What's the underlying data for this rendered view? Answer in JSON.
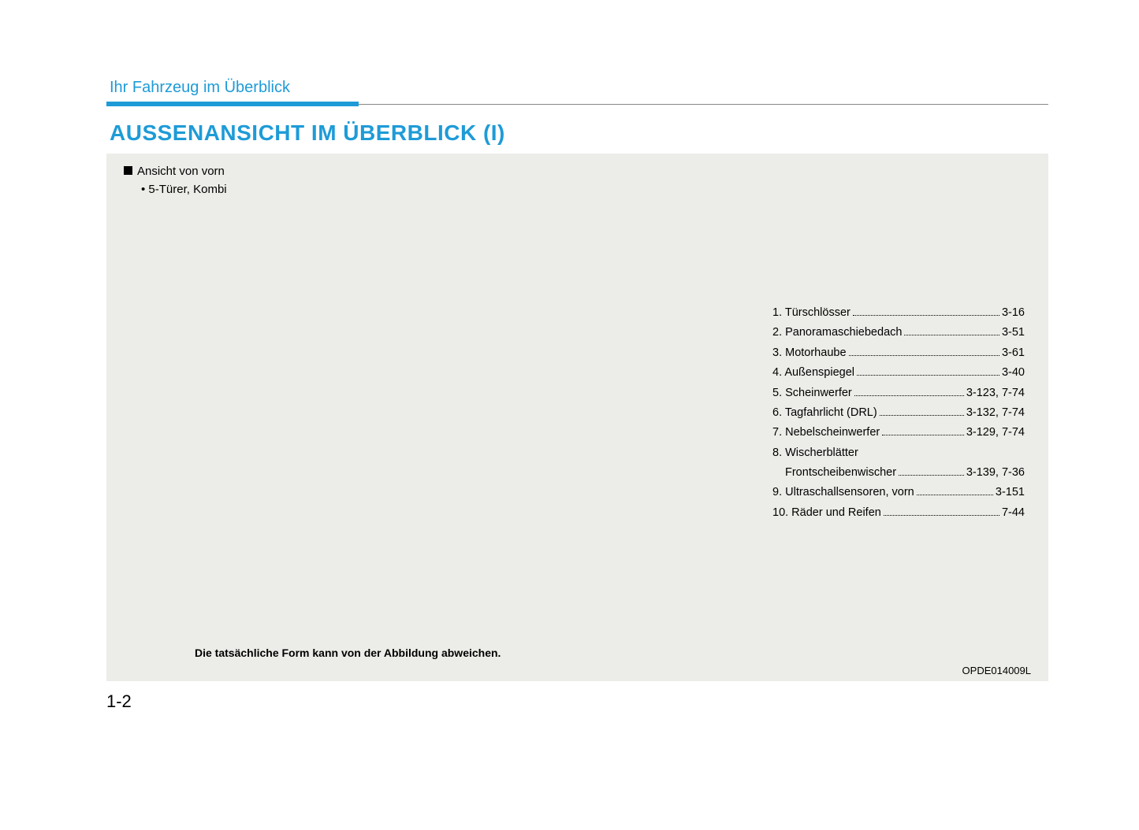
{
  "header": {
    "section_label": "Ihr Fahrzeug im Überblick",
    "title": "AUSSENANSICHT IM ÜBERBLICK (I)"
  },
  "view": {
    "label": "Ansicht von vorn",
    "sub": "• 5-Türer, Kombi"
  },
  "toc": [
    {
      "label": "1. Türschlösser",
      "page": "3-16"
    },
    {
      "label": "2. Panoramaschiebedach",
      "page": "3-51"
    },
    {
      "label": "3. Motorhaube",
      "page": "3-61"
    },
    {
      "label": "4. Außenspiegel",
      "page": "3-40"
    },
    {
      "label": "5. Scheinwerfer",
      "page": "3-123, 7-74"
    },
    {
      "label": "6. Tagfahrlicht (DRL)",
      "page": "3-132, 7-74"
    },
    {
      "label": "7. Nebelscheinwerfer",
      "page": "3-129, 7-74"
    },
    {
      "label": "8. Wischerblätter",
      "page": ""
    },
    {
      "label": "Frontscheibenwischer",
      "page": "3-139, 7-36",
      "sub": true
    },
    {
      "label": "9. Ultraschallsensoren, vorn",
      "page": "3-151"
    },
    {
      "label": "10. Räder und Reifen",
      "page": "7-44"
    }
  ],
  "caption": "Die tatsächliche Form kann von der Abbildung abweichen.",
  "image_code": "OPDE014009L",
  "page_number": "1-2",
  "colors": {
    "accent": "#1e9bd7",
    "box_bg": "#ecede8",
    "text": "#000000"
  }
}
